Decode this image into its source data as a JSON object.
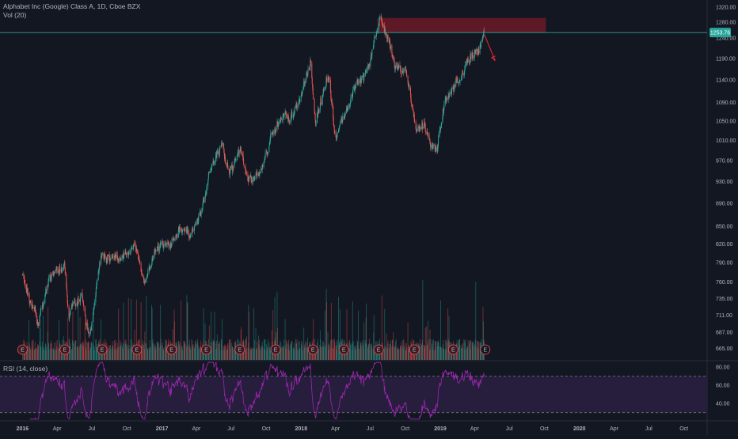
{
  "header": {
    "title": "Alphabet Inc (Google) Class A, 1D, Cboe BZX",
    "volume_label": "Vol (20)"
  },
  "price_label": "1253.76",
  "rsi_label": "RSI (14, close)",
  "earnings_marker": "E",
  "colors": {
    "background": "#131722",
    "up": "#26a69a",
    "down": "#ef5350",
    "rsi_line": "#9c27b0",
    "rsi_band": "#2a1e3f",
    "resistance_zone": "#6b1a26",
    "arrow": "#e0282d",
    "price_line": "#26a69a"
  },
  "chart_data": [
    {
      "type": "candlestick",
      "title": "Alphabet Inc (Google) Class A, 1D, Cboe BZX",
      "x_ticks": [
        "2016",
        "Apr",
        "Jul",
        "Oct",
        "2017",
        "Apr",
        "Jul",
        "Oct",
        "2018",
        "Apr",
        "Jul",
        "Oct",
        "2019",
        "Apr",
        "Jul",
        "Oct",
        "2020",
        "Apr",
        "Jul",
        "Oct"
      ],
      "y_ticks": [
        665.0,
        687.0,
        711.0,
        735.0,
        760.0,
        790.0,
        820.0,
        850.0,
        890.0,
        930.0,
        970.0,
        1010.0,
        1050.0,
        1090.0,
        1140.0,
        1190.0,
        1240.0,
        1280.0,
        1320.0
      ],
      "y_scale": "log",
      "ylim": [
        652,
        1330
      ],
      "last_price": 1253.76,
      "path_points": [
        [
          "2016-01-01",
          770
        ],
        [
          "2016-02-10",
          700
        ],
        [
          "2016-03-10",
          760
        ],
        [
          "2016-04-20",
          790
        ],
        [
          "2016-05-01",
          705
        ],
        [
          "2016-06-05",
          740
        ],
        [
          "2016-06-25",
          680
        ],
        [
          "2016-07-25",
          800
        ],
        [
          "2016-09-01",
          795
        ],
        [
          "2016-10-20",
          820
        ],
        [
          "2016-11-15",
          760
        ],
        [
          "2016-12-15",
          810
        ],
        [
          "2017-01-15",
          820
        ],
        [
          "2017-03-01",
          845
        ],
        [
          "2017-03-20",
          835
        ],
        [
          "2017-04-25",
          905
        ],
        [
          "2017-05-01",
          935
        ],
        [
          "2017-06-08",
          1000
        ],
        [
          "2017-06-25",
          940
        ],
        [
          "2017-07-25",
          985
        ],
        [
          "2017-08-15",
          930
        ],
        [
          "2017-09-15",
          945
        ],
        [
          "2017-10-15",
          1015
        ],
        [
          "2017-10-30",
          1050
        ],
        [
          "2017-12-10",
          1060
        ],
        [
          "2018-01-25",
          1180
        ],
        [
          "2018-02-08",
          1045
        ],
        [
          "2018-03-12",
          1160
        ],
        [
          "2018-04-02",
          1015
        ],
        [
          "2018-04-25",
          1060
        ],
        [
          "2018-05-10",
          1100
        ],
        [
          "2018-06-20",
          1160
        ],
        [
          "2018-07-27",
          1285
        ],
        [
          "2018-08-20",
          1225
        ],
        [
          "2018-09-10",
          1160
        ],
        [
          "2018-10-05",
          1150
        ],
        [
          "2018-10-29",
          1040
        ],
        [
          "2018-11-20",
          1035
        ],
        [
          "2018-12-24",
          985
        ],
        [
          "2019-01-15",
          1100
        ],
        [
          "2019-02-15",
          1130
        ],
        [
          "2019-03-15",
          1190
        ],
        [
          "2019-04-10",
          1215
        ],
        [
          "2019-04-26",
          1253.76
        ]
      ],
      "resistance_zone": {
        "from": "2018-07-20",
        "to": "2019-10-05",
        "low": 1253.76,
        "high": 1291
      },
      "projection_arrow": {
        "from": [
          "2019-04-27",
          1248
        ],
        "to": [
          "2019-05-25",
          1185
        ]
      }
    },
    {
      "type": "bar",
      "title": "Vol (20)",
      "earnings_dates": [
        "2016-01-01",
        "2016-04-21",
        "2016-07-28",
        "2016-10-27",
        "2017-01-26",
        "2017-04-27",
        "2017-07-24",
        "2017-10-26",
        "2018-02-01",
        "2018-04-23",
        "2018-07-23",
        "2018-10-25",
        "2019-02-04",
        "2019-04-29"
      ]
    },
    {
      "type": "line",
      "title": "RSI (14, close)",
      "y_ticks": [
        40.0,
        60.0,
        80.0
      ],
      "overbought": 70,
      "oversold": 30,
      "ylim": [
        22,
        86
      ]
    }
  ]
}
